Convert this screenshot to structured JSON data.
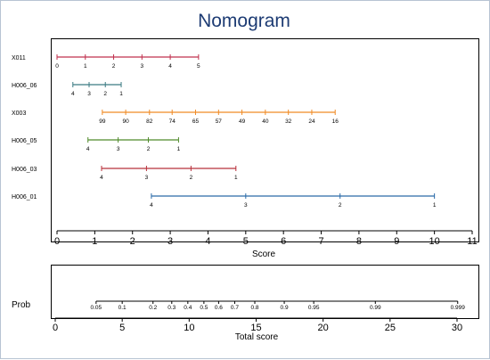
{
  "chart_data": {
    "type": "nomogram",
    "title": "Nomogram",
    "score_axis": {
      "label": "Score",
      "min": 0,
      "max": 11,
      "ticks": [
        0,
        1,
        2,
        3,
        4,
        5,
        6,
        7,
        8,
        9,
        10,
        11
      ]
    },
    "variables": [
      {
        "name": "X011",
        "color": "#c0304e",
        "points": [
          {
            "label": "0",
            "score": 0
          },
          {
            "label": "1",
            "score": 0.75
          },
          {
            "label": "2",
            "score": 1.5
          },
          {
            "label": "3",
            "score": 2.25
          },
          {
            "label": "4",
            "score": 3.0
          },
          {
            "label": "5",
            "score": 3.75
          }
        ]
      },
      {
        "name": "H006_06",
        "color": "#3a7a82",
        "points": [
          {
            "label": "4",
            "score": 0.42
          },
          {
            "label": "3",
            "score": 0.85
          },
          {
            "label": "2",
            "score": 1.28
          },
          {
            "label": "1",
            "score": 1.7
          }
        ]
      },
      {
        "name": "X003",
        "color": "#f08a24",
        "points": [
          {
            "label": "99",
            "score": 1.2
          },
          {
            "label": "90",
            "score": 1.82
          },
          {
            "label": "82",
            "score": 2.45
          },
          {
            "label": "74",
            "score": 3.05
          },
          {
            "label": "65",
            "score": 3.67
          },
          {
            "label": "57",
            "score": 4.28
          },
          {
            "label": "49",
            "score": 4.9
          },
          {
            "label": "40",
            "score": 5.52
          },
          {
            "label": "32",
            "score": 6.13
          },
          {
            "label": "24",
            "score": 6.75
          },
          {
            "label": "16",
            "score": 7.37
          }
        ]
      },
      {
        "name": "H006_05",
        "color": "#4f8a2a",
        "points": [
          {
            "label": "4",
            "score": 0.82
          },
          {
            "label": "3",
            "score": 1.62
          },
          {
            "label": "2",
            "score": 2.42
          },
          {
            "label": "1",
            "score": 3.22
          }
        ]
      },
      {
        "name": "H006_03",
        "color": "#b8303a",
        "points": [
          {
            "label": "4",
            "score": 1.18
          },
          {
            "label": "3",
            "score": 2.37
          },
          {
            "label": "2",
            "score": 3.55
          },
          {
            "label": "1",
            "score": 4.74
          }
        ]
      },
      {
        "name": "H006_01",
        "color": "#2a6aa8",
        "points": [
          {
            "label": "4",
            "score": 2.5
          },
          {
            "label": "3",
            "score": 5.0
          },
          {
            "label": "2",
            "score": 7.5
          },
          {
            "label": "1",
            "score": 10.0
          }
        ]
      }
    ],
    "probability": {
      "label": "Prob",
      "min_total": 3.05,
      "max_total": 30.05,
      "ticks": [
        {
          "label": "0.05",
          "total": 3.05
        },
        {
          "label": "0.1",
          "total": 5.0
        },
        {
          "label": "0.2",
          "total": 7.3
        },
        {
          "label": "0.3",
          "total": 8.7
        },
        {
          "label": "0.4",
          "total": 9.9
        },
        {
          "label": "0.5",
          "total": 11.1
        },
        {
          "label": "0.6",
          "total": 12.2
        },
        {
          "label": "0.7",
          "total": 13.4
        },
        {
          "label": "0.8",
          "total": 14.9
        },
        {
          "label": "0.9",
          "total": 17.1
        },
        {
          "label": "0.95",
          "total": 19.3
        },
        {
          "label": "0.99",
          "total": 23.9
        },
        {
          "label": "0.999",
          "total": 30.05
        }
      ]
    },
    "total_axis": {
      "label": "Total score",
      "min": 0,
      "max": 30,
      "ticks": [
        0,
        5,
        10,
        15,
        20,
        25,
        30
      ]
    }
  }
}
